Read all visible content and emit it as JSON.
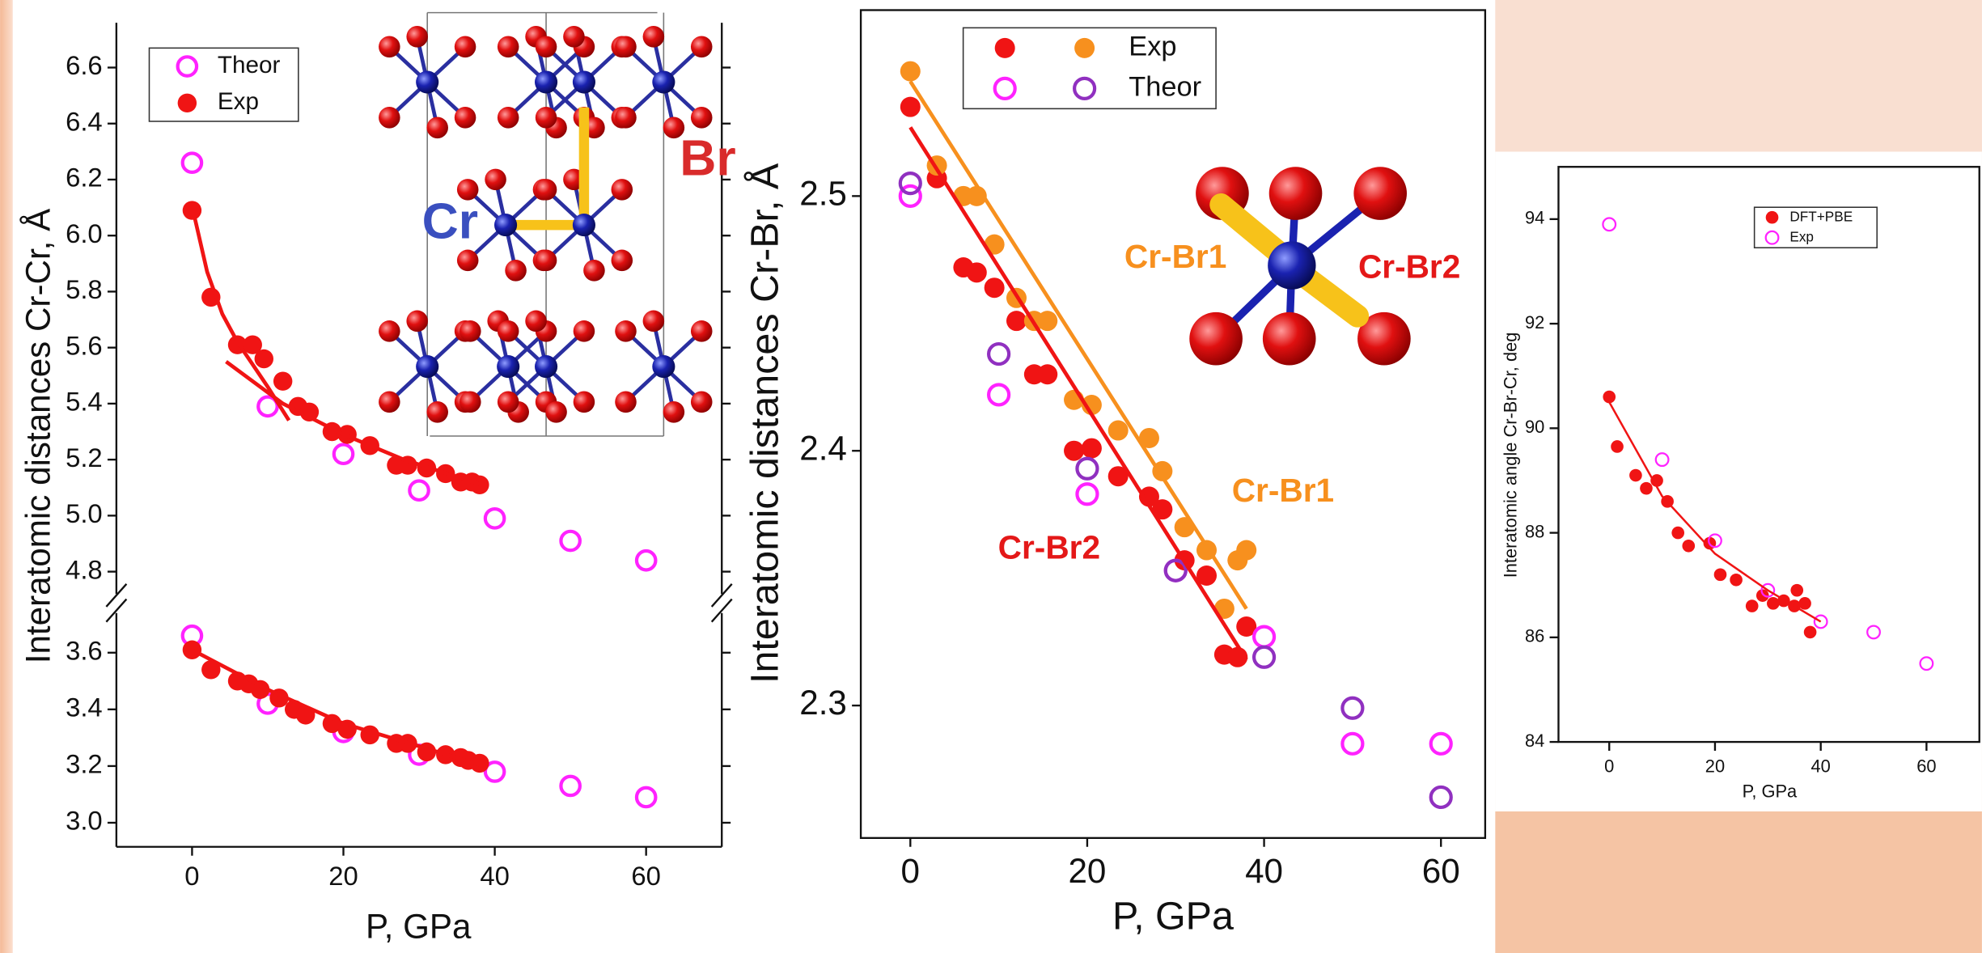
{
  "chart_data": [
    {
      "type": "scatter",
      "ylabel": "Interatomic distances Cr-Cr, Å",
      "xlim": [
        -10,
        70
      ],
      "ylim": [
        4.72,
        6.76
      ],
      "yticks": [
        4.8,
        {
          "value": 5,
          "label": "5.0"
        },
        5.2,
        5.4,
        5.6,
        5.8,
        {
          "value": 6,
          "label": "6.0"
        },
        6.2,
        6.4,
        6.6
      ],
      "series": [
        {
          "name": "Theor",
          "color": "#ff22ff",
          "filled": false,
          "x": [
            0,
            10,
            20,
            30,
            40,
            50,
            60
          ],
          "values": [
            6.26,
            5.39,
            5.22,
            5.09,
            4.99,
            4.91,
            4.84
          ]
        },
        {
          "name": "Exp",
          "color": "#f01414",
          "filled": true,
          "x": [
            0,
            2.5,
            6,
            8,
            9.5,
            12,
            14,
            15.5,
            18.5,
            20.5,
            23.5,
            27,
            28.5,
            31,
            33.5,
            35.5,
            37,
            38
          ],
          "values": [
            6.09,
            5.78,
            5.61,
            5.61,
            5.56,
            5.48,
            5.39,
            5.37,
            5.3,
            5.29,
            5.25,
            5.18,
            5.18,
            5.17,
            5.15,
            5.12,
            5.12,
            5.11
          ]
        }
      ],
      "fits": [
        {
          "color": "#f01414",
          "x": [
            0.3,
            2,
            4,
            6,
            8,
            10,
            12.8
          ],
          "values": [
            6.07,
            5.87,
            5.72,
            5.62,
            5.54,
            5.46,
            5.34
          ]
        },
        {
          "color": "#f01414",
          "x": [
            4.5,
            12,
            20,
            28,
            38.3
          ],
          "values": [
            5.55,
            5.4,
            5.29,
            5.2,
            5.11
          ]
        }
      ],
      "annotations": [
        "Cr",
        "Br"
      ]
    },
    {
      "type": "scatter",
      "xlabel": "P, GPa",
      "xlim": [
        -10,
        70
      ],
      "xticks": [
        0,
        20,
        40,
        60
      ],
      "ylim": [
        2.915,
        3.74
      ],
      "yticks": [
        {
          "value": 3,
          "label": "3.0"
        },
        3.2,
        3.4,
        3.6
      ],
      "series": [
        {
          "color": "#ff22ff",
          "filled": false,
          "x": [
            0,
            10,
            20,
            30,
            40,
            50,
            60
          ],
          "values": [
            3.66,
            3.42,
            3.32,
            3.24,
            3.18,
            3.13,
            3.09
          ]
        },
        {
          "color": "#f01414",
          "filled": true,
          "x": [
            0,
            2.5,
            6,
            7.5,
            9,
            11.5,
            13.5,
            15,
            18.5,
            20.5,
            23.5,
            27,
            28.5,
            31,
            33.5,
            35.5,
            36.5,
            38
          ],
          "values": [
            3.61,
            3.54,
            3.5,
            3.49,
            3.47,
            3.44,
            3.4,
            3.38,
            3.35,
            3.33,
            3.31,
            3.28,
            3.28,
            3.25,
            3.24,
            3.23,
            3.22,
            3.21
          ]
        }
      ],
      "fits": [
        {
          "color": "#f01414",
          "x": [
            0,
            10,
            20,
            30,
            38.5
          ],
          "values": [
            3.61,
            3.47,
            3.35,
            3.27,
            3.2
          ]
        }
      ]
    },
    {
      "type": "scatter",
      "ylabel": "Interatomic distances Cr-Br, Å",
      "xlabel": "P, GPa",
      "xlim": [
        -5.6,
        65
      ],
      "xticks": [
        0,
        20,
        40,
        60
      ],
      "ylim": [
        2.248,
        2.573
      ],
      "yticks": [
        2.3,
        2.4,
        2.5
      ],
      "groups": [
        {
          "name": "Exp",
          "series": [
            {
              "color": "#f01414",
              "filled": true,
              "x": [
                0,
                3,
                6,
                7.5,
                9.5,
                12,
                14,
                15.5,
                18.5,
                20.5,
                23.5,
                27,
                28.5,
                31,
                33.5,
                35.5,
                37,
                38
              ],
              "values": [
                2.535,
                2.507,
                2.472,
                2.47,
                2.464,
                2.451,
                2.43,
                2.43,
                2.4,
                2.401,
                2.39,
                2.382,
                2.377,
                2.357,
                2.351,
                2.32,
                2.319,
                2.331
              ]
            },
            {
              "color": "#f7901e",
              "filled": true,
              "x": [
                0,
                3,
                6,
                7.5,
                9.5,
                12,
                14,
                15.5,
                18.5,
                20.5,
                23.5,
                27,
                28.5,
                31,
                33.5,
                35.5,
                37,
                38
              ],
              "values": [
                2.549,
                2.512,
                2.5,
                2.5,
                2.481,
                2.46,
                2.451,
                2.451,
                2.42,
                2.418,
                2.408,
                2.405,
                2.392,
                2.37,
                2.361,
                2.338,
                2.357,
                2.361
              ]
            }
          ]
        },
        {
          "name": "Theor",
          "series": [
            {
              "color": "#ff22ff",
              "filled": false,
              "x": [
                0,
                10,
                20,
                30,
                40,
                50,
                60
              ],
              "values": [
                2.5,
                2.422,
                2.383,
                2.353,
                2.327,
                2.285,
                2.285
              ]
            },
            {
              "color": "#9030c0",
              "filled": false,
              "x": [
                0,
                10,
                20,
                30,
                40,
                50,
                60
              ],
              "values": [
                2.505,
                2.438,
                2.393,
                2.353,
                2.319,
                2.299,
                2.264
              ]
            }
          ]
        }
      ],
      "fits": [
        {
          "color": "#f01414",
          "x": [
            0,
            38
          ],
          "values": [
            2.527,
            2.318
          ]
        },
        {
          "color": "#f7901e",
          "x": [
            0,
            38
          ],
          "values": [
            2.545,
            2.338
          ]
        }
      ],
      "annotations": [
        "Cr-Br1",
        "Cr-Br2",
        "Cr-Br1",
        "Cr-Br2"
      ]
    },
    {
      "type": "scatter",
      "ylabel": "Interatomic angle Cr-Br-Cr, deg",
      "xlabel": "P, GPa",
      "xlim": [
        -9.6,
        70
      ],
      "xticks": [
        0,
        20,
        40,
        60
      ],
      "ylim": [
        84,
        95
      ],
      "yticks": [
        84,
        86,
        88,
        90,
        92,
        94
      ],
      "series": [
        {
          "name": "DFT+PBE",
          "color": "#f01414",
          "filled": true,
          "x": [
            0,
            1.5,
            5,
            7,
            9,
            11,
            13,
            15,
            19,
            21,
            24,
            27,
            29,
            31,
            33,
            35,
            35.5,
            37,
            38
          ],
          "values": [
            90.6,
            89.65,
            89.1,
            88.85,
            89.0,
            88.6,
            88.0,
            87.75,
            87.8,
            87.2,
            87.1,
            86.6,
            86.8,
            86.65,
            86.7,
            86.6,
            86.9,
            86.65,
            86.1
          ]
        },
        {
          "name": "Exp",
          "color": "#ff22ff",
          "filled": false,
          "x": [
            0,
            10,
            20,
            30,
            40,
            50,
            60
          ],
          "values": [
            93.9,
            89.4,
            87.85,
            86.9,
            86.3,
            86.1,
            85.5
          ]
        }
      ],
      "fits": [
        {
          "color": "#f01414",
          "x": [
            0,
            10,
            20,
            30,
            40
          ],
          "values": [
            90.5,
            88.7,
            87.6,
            86.9,
            86.3
          ]
        }
      ]
    }
  ]
}
